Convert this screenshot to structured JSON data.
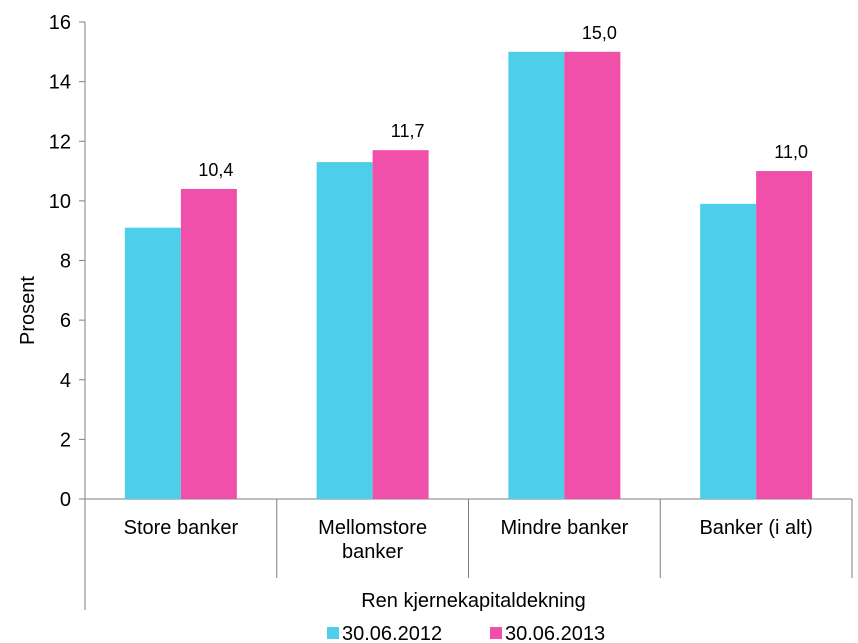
{
  "chart_data": {
    "type": "bar",
    "categories": [
      [
        "Store banker"
      ],
      [
        "Mellomstore",
        "banker"
      ],
      [
        "Mindre banker"
      ],
      [
        "Banker (i alt)"
      ]
    ],
    "series": [
      {
        "name": "30.06.2012",
        "color": "#4dcfea",
        "values": [
          9.1,
          11.3,
          15.0,
          9.9
        ],
        "data_labels": [
          "",
          "",
          "",
          ""
        ]
      },
      {
        "name": "30.06.2013",
        "color": "#f050aa",
        "values": [
          10.4,
          11.7,
          15.0,
          11.0
        ],
        "data_labels": [
          "10,4",
          "11,7",
          "15,0",
          "11,0"
        ]
      }
    ],
    "ylabel": "Prosent",
    "xlabel": "Ren kjernekapitaldekning",
    "ylim": [
      0,
      16
    ],
    "yticks": [
      0,
      2,
      4,
      6,
      8,
      10,
      12,
      14,
      16
    ],
    "ytick_labels": [
      "0",
      "2",
      "4",
      "6",
      "8",
      "10",
      "12",
      "14",
      "16"
    ],
    "grid": false,
    "legend_position": "bottom"
  }
}
